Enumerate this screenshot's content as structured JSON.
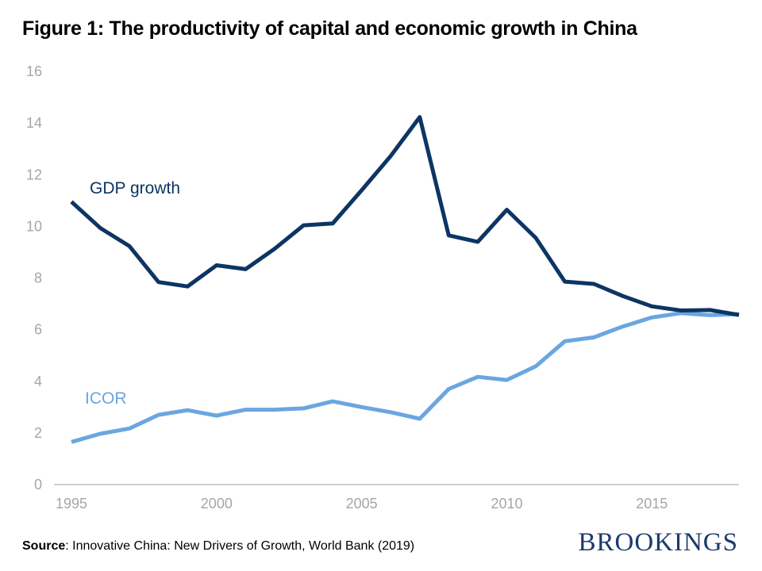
{
  "page": {
    "title": "Figure 1: The productivity of capital and economic growth in China",
    "source_label": "Source",
    "source_text": ": Innovative China: New Drivers of Growth, World Bank (2019)",
    "brand": "BROOKINGS"
  },
  "colors": {
    "gdp": "#0c3563",
    "icor": "#6aa6e0",
    "axis": "#bfbfbf",
    "tick": "#a6a6a6"
  },
  "chart_data": {
    "type": "line",
    "title": "Figure 1: The productivity of capital and economic growth in China",
    "xlabel": "",
    "ylabel": "",
    "x": [
      1995,
      1996,
      1997,
      1998,
      1999,
      2000,
      2001,
      2002,
      2003,
      2004,
      2005,
      2006,
      2007,
      2008,
      2009,
      2010,
      2011,
      2012,
      2013,
      2014,
      2015,
      2016,
      2017,
      2018
    ],
    "xlim": [
      1995,
      2018
    ],
    "ylim": [
      0,
      16
    ],
    "xticks": [
      1995,
      2000,
      2005,
      2010,
      2015
    ],
    "yticks": [
      0,
      2,
      4,
      6,
      8,
      10,
      12,
      14,
      16
    ],
    "grid": false,
    "series": [
      {
        "name": "GDP growth",
        "color": "#0c3563",
        "values": [
          10.95,
          9.93,
          9.23,
          7.84,
          7.67,
          8.49,
          8.34,
          9.13,
          10.04,
          10.11,
          11.4,
          12.72,
          14.23,
          9.65,
          9.4,
          10.64,
          9.55,
          7.86,
          7.77,
          7.3,
          6.9,
          6.74,
          6.76,
          6.57
        ]
      },
      {
        "name": "ICOR",
        "color": "#6aa6e0",
        "values": [
          1.65,
          1.97,
          2.17,
          2.7,
          2.88,
          2.67,
          2.9,
          2.9,
          2.95,
          3.22,
          3.0,
          2.8,
          2.55,
          3.7,
          4.17,
          4.05,
          4.58,
          5.55,
          5.7,
          6.12,
          6.47,
          6.64,
          6.56,
          6.6
        ]
      }
    ]
  }
}
